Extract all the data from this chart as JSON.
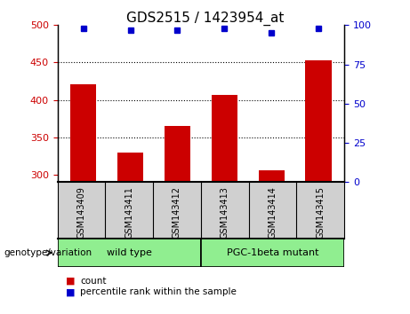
{
  "title": "GDS2515 / 1423954_at",
  "samples": [
    "GSM143409",
    "GSM143411",
    "GSM143412",
    "GSM143413",
    "GSM143414",
    "GSM143415"
  ],
  "counts": [
    421,
    330,
    365,
    407,
    306,
    453
  ],
  "percentiles": [
    98,
    97,
    97,
    98,
    95,
    98
  ],
  "ylim_left": [
    290,
    500
  ],
  "ylim_right": [
    0,
    100
  ],
  "yticks_left": [
    300,
    350,
    400,
    450,
    500
  ],
  "yticks_right": [
    0,
    25,
    50,
    75,
    100
  ],
  "bar_color": "#cc0000",
  "marker_color": "#0000cc",
  "group_label": "genotype/variation",
  "groups": [
    {
      "label": "wild type",
      "span": [
        0,
        3
      ],
      "color": "#90EE90"
    },
    {
      "label": "PGC-1beta mutant",
      "span": [
        3,
        6
      ],
      "color": "#90EE90"
    }
  ],
  "legend_items": [
    {
      "label": "count",
      "color": "#cc0000"
    },
    {
      "label": "percentile rank within the sample",
      "color": "#0000cc"
    }
  ],
  "background_color": "#ffffff",
  "label_bg": "#d0d0d0",
  "title_fontsize": 11,
  "axis_fontsize": 8,
  "label_fontsize": 7,
  "group_fontsize": 8
}
